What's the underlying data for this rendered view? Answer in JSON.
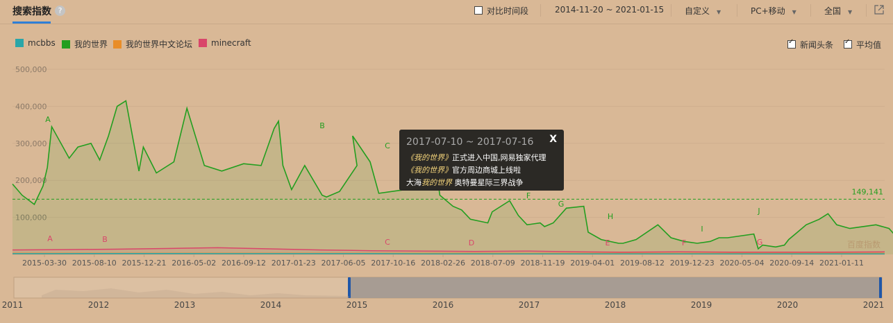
{
  "header": {
    "title": "搜索指数",
    "help_icon": "question-icon",
    "compare_label": "对比时间段",
    "date_range": "2014-11-20 ~ 2021-01-15",
    "custom_label": "自定义",
    "device_label": "PC+移动",
    "region_label": "全国",
    "export_icon": "external-link-icon"
  },
  "options": {
    "news_label": "新闻头条",
    "avg_label": "平均值"
  },
  "colors": {
    "mcbbs": "#2aa6a8",
    "wodeshijie": "#229e1f",
    "luntan": "#e98d28",
    "minecraft": "#d9466a"
  },
  "tooltip": {
    "date": "2017-07-10 ~ 2017-07-16",
    "close": "X",
    "lines": [
      {
        "pre": "",
        "em": "《我的世界》",
        "post": "正式进入中国,网易独家代理"
      },
      {
        "pre": "",
        "em": "《我的世界》",
        "post": "官方周边商城上线啦"
      },
      {
        "pre": "大海",
        "em": "我的世界",
        "post": " 奥特曼星际三界战争"
      }
    ]
  },
  "chart_data": {
    "type": "line",
    "ylim": [
      0,
      500000
    ],
    "yticks": [
      "500,000",
      "400,000",
      "300,000",
      "200,000",
      "100,000"
    ],
    "xticks": [
      "2015-03-30",
      "2015-08-10",
      "2015-12-21",
      "2016-05-02",
      "2016-09-12",
      "2017-01-23",
      "2017-06-05",
      "2017-10-16",
      "2018-02-26",
      "2018-07-09",
      "2018-11-19",
      "2019-04-01",
      "2019-08-12",
      "2019-12-23",
      "2020-05-04",
      "2020-09-14",
      "2021-01-11"
    ],
    "average": {
      "label": "149,141",
      "value": 149141
    },
    "green_markers": [
      "A",
      "B",
      "C",
      "F",
      "G",
      "H",
      "I",
      "J"
    ],
    "red_markers": [
      "A",
      "B",
      "C",
      "D",
      "E",
      "F",
      "G"
    ],
    "series": [
      {
        "name": "mcbbs",
        "values": [
          2000,
          2000,
          2500,
          2500,
          2000,
          2000,
          2000,
          2000,
          1500,
          1500,
          1500,
          1500,
          1500,
          1500,
          1500,
          1500,
          1500,
          1500
        ]
      },
      {
        "name": "我的世界",
        "values": [
          190000,
          160000,
          135000,
          185000,
          235000,
          345000,
          260000,
          290000,
          300000,
          255000,
          320000,
          400000,
          415000,
          225000,
          290000,
          220000,
          250000,
          395000,
          240000,
          225000,
          245000,
          240000,
          340000,
          360000,
          240000,
          175000,
          240000,
          160000,
          155000,
          170000,
          240000,
          320000,
          250000,
          165000,
          175000,
          240000,
          270000,
          330000,
          160000,
          130000,
          120000,
          95000,
          85000,
          115000,
          145000,
          105000,
          80000,
          85000,
          75000,
          85000,
          125000,
          130000,
          60000,
          40000,
          30000,
          30000,
          40000,
          80000,
          45000,
          35000,
          30000,
          35000,
          45000,
          45000,
          55000,
          15000,
          25000,
          20000,
          25000,
          40000,
          60000,
          80000,
          95000,
          110000,
          80000,
          70000,
          75000,
          80000,
          70000,
          30000,
          40000,
          30000
        ],
        "xpos": [
          0,
          0.011,
          0.025,
          0.035,
          0.04,
          0.045,
          0.065,
          0.075,
          0.09,
          0.1,
          0.11,
          0.12,
          0.13,
          0.145,
          0.15,
          0.165,
          0.185,
          0.2,
          0.22,
          0.24,
          0.265,
          0.285,
          0.3,
          0.305,
          0.31,
          0.32,
          0.335,
          0.355,
          0.36,
          0.375,
          0.395,
          0.39,
          0.41,
          0.42,
          0.45,
          0.47,
          0.475,
          0.48,
          0.49,
          0.505,
          0.515,
          0.525,
          0.545,
          0.55,
          0.57,
          0.58,
          0.59,
          0.605,
          0.61,
          0.62,
          0.635,
          0.655,
          0.66,
          0.675,
          0.695,
          0.7,
          0.715,
          0.74,
          0.755,
          0.77,
          0.785,
          0.8,
          0.81,
          0.82,
          0.85,
          0.855,
          0.86,
          0.875,
          0.885,
          0.89,
          0.9,
          0.91,
          0.925,
          0.935,
          0.945,
          0.96,
          0.975,
          0.99,
          1.005,
          1.02,
          1.04,
          1.06
        ]
      },
      {
        "name": "我的世界中文论坛",
        "values": [
          3000,
          3000,
          3000,
          3000,
          3000,
          3000,
          3000,
          3000,
          3000,
          3000,
          3000,
          3000,
          3000,
          3000,
          3000,
          3000,
          3000,
          3000
        ]
      },
      {
        "name": "minecraft",
        "values": [
          12000,
          13000,
          14000,
          16000,
          18000,
          15000,
          12000,
          10000,
          9000,
          8000,
          9000,
          7000,
          6000,
          7000,
          6000,
          6000,
          6000,
          7000
        ]
      }
    ]
  },
  "navigator": {
    "years": [
      "2011",
      "2012",
      "2013",
      "2014",
      "2015",
      "2016",
      "2017",
      "2018",
      "2019",
      "2020",
      "2021"
    ]
  },
  "watermark": "百度指数"
}
